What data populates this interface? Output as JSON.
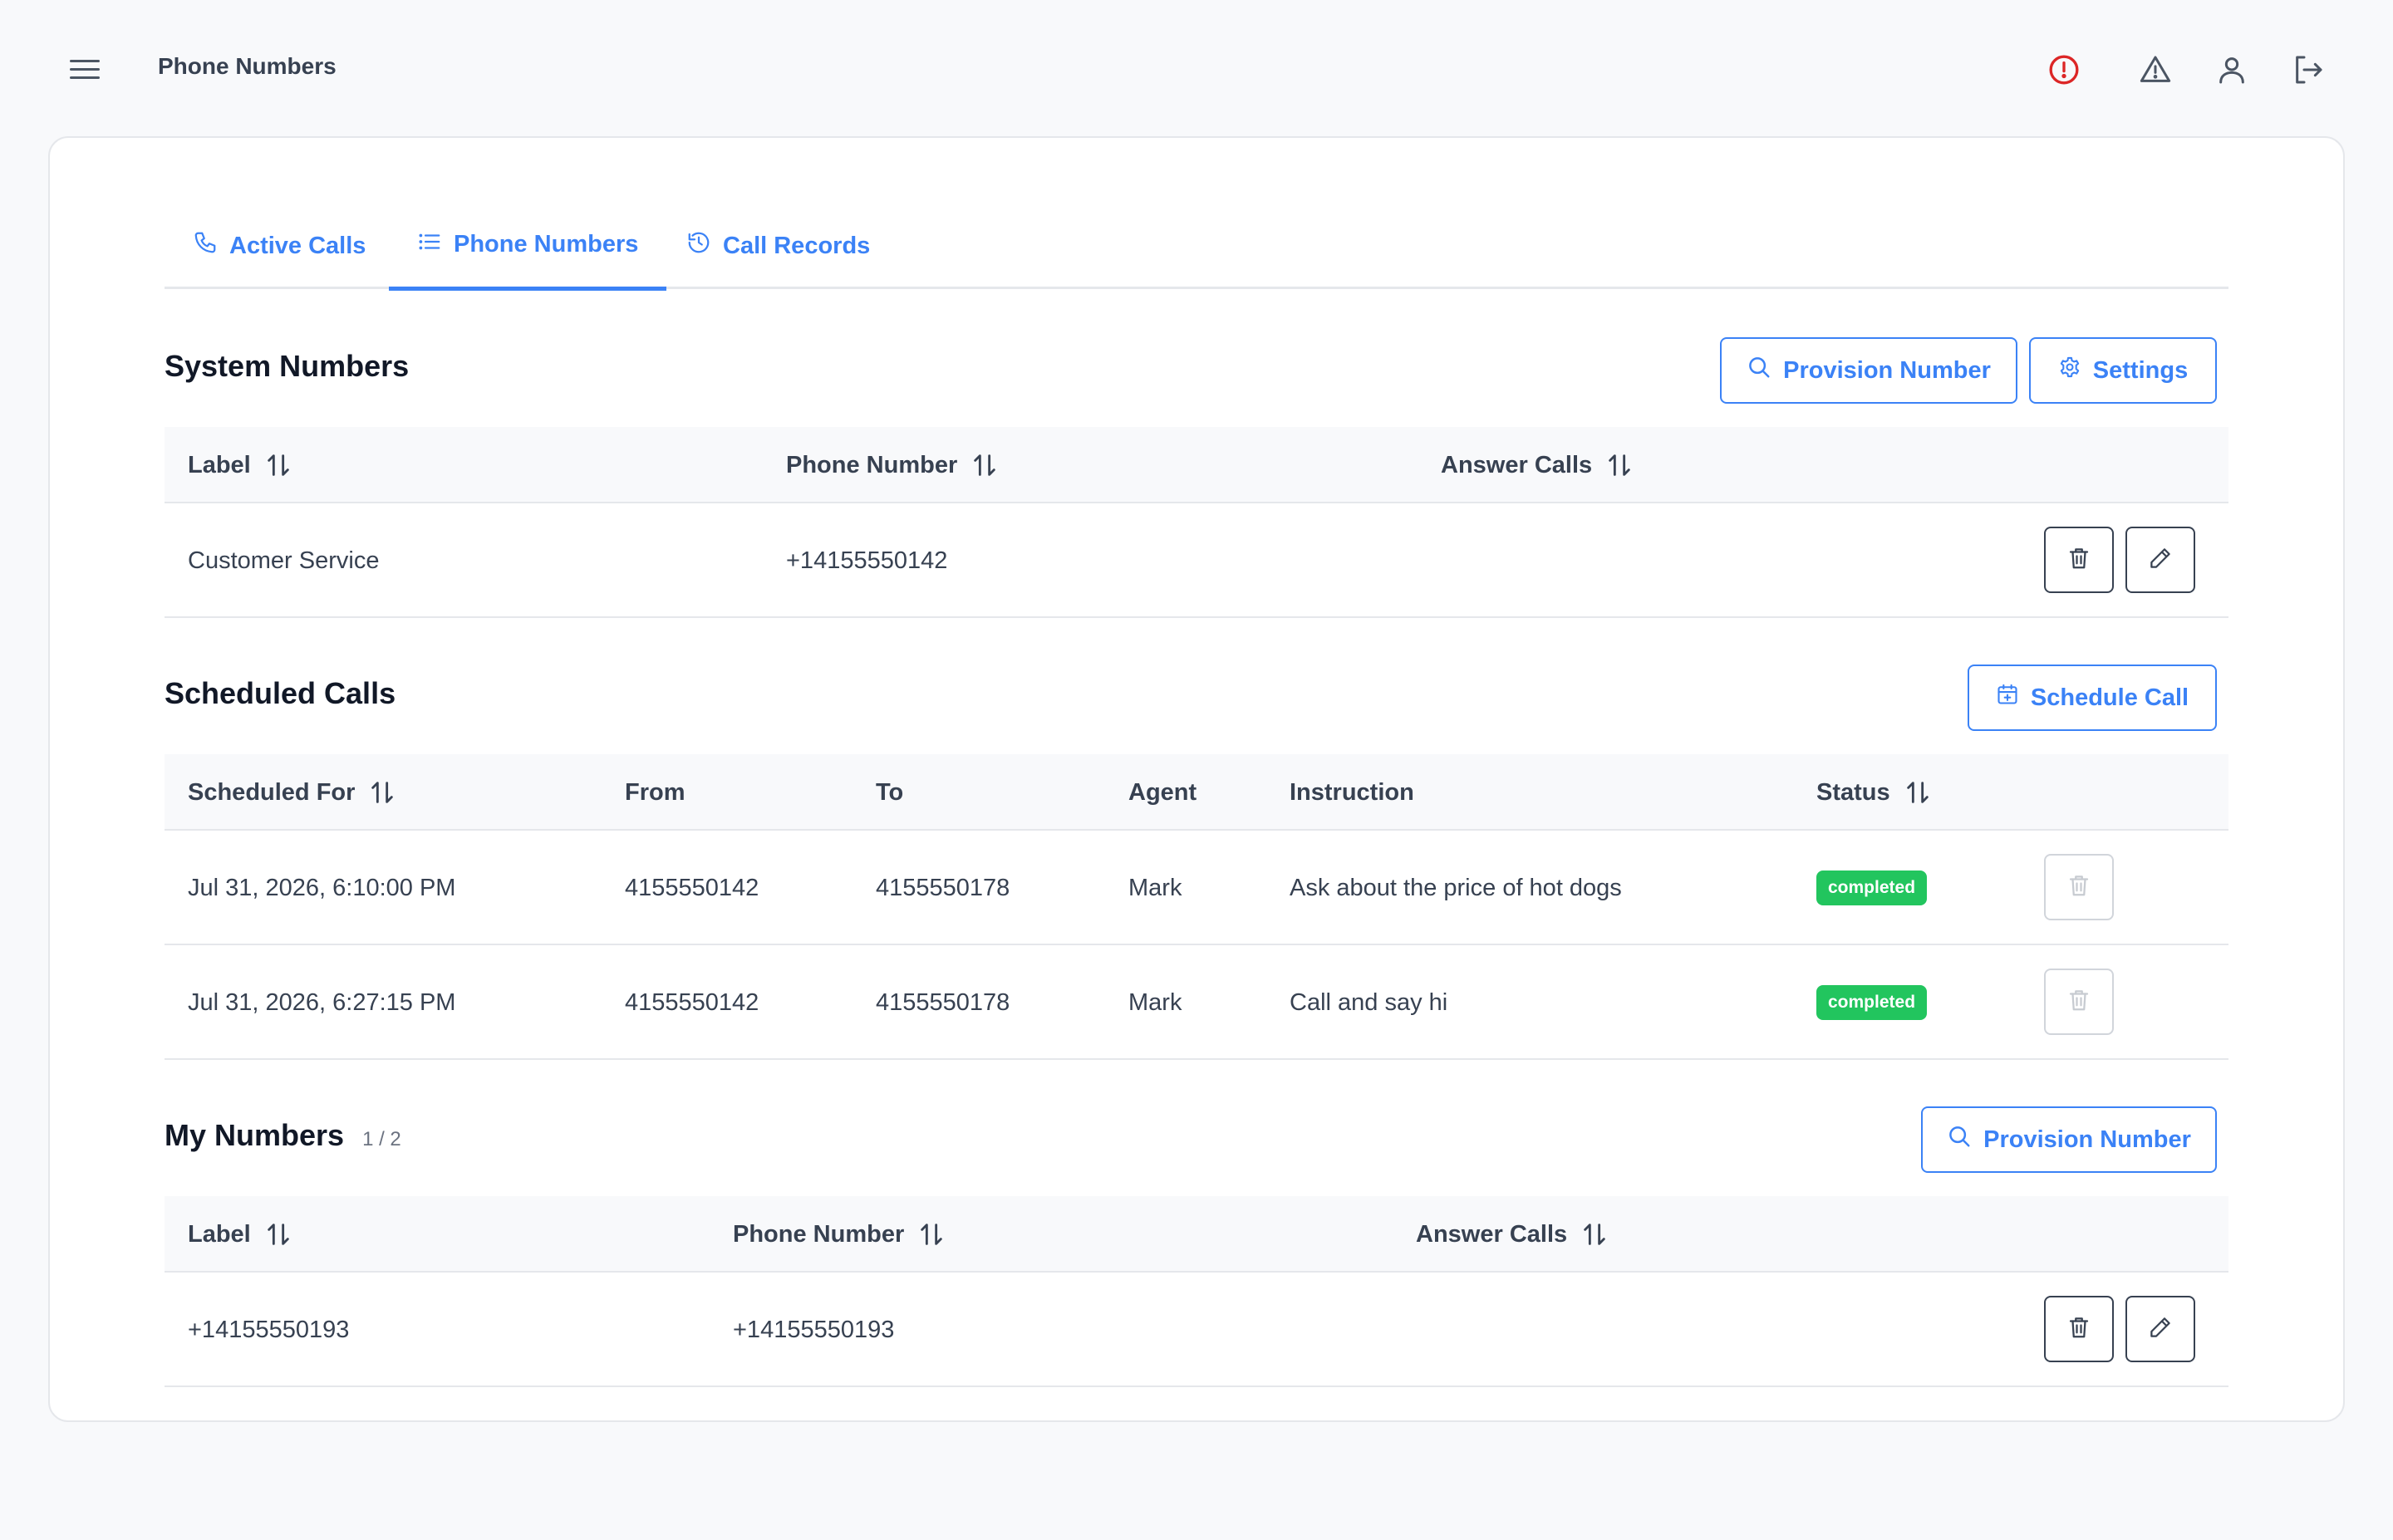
{
  "header": {
    "title": "Phone Numbers",
    "menu_icon": "hamburger-menu-icon",
    "icons": [
      "alert-circle-icon",
      "warning-triangle-icon",
      "user-icon",
      "logout-icon"
    ],
    "alert_color": "#dc2626"
  },
  "tabs": [
    {
      "label": "Active Calls",
      "icon": "phone-icon"
    },
    {
      "label": "Phone Numbers",
      "icon": "list-icon",
      "active": true
    },
    {
      "label": "Call Records",
      "icon": "history-icon"
    }
  ],
  "system_numbers": {
    "title": "System Numbers",
    "provision_label": "Provision Number",
    "settings_label": "Settings",
    "columns": [
      "Label",
      "Phone Number",
      "Answer Calls"
    ],
    "rows": [
      {
        "label": "Customer Service",
        "phone": "+14155550142",
        "answer_calls": ""
      }
    ]
  },
  "scheduled_calls": {
    "title": "Scheduled Calls",
    "schedule_label": "Schedule Call",
    "columns": [
      "Scheduled For",
      "From",
      "To",
      "Agent",
      "Instruction",
      "Status"
    ],
    "rows": [
      {
        "scheduled_for": "Jul 31, 2026, 6:10:00 PM",
        "from": "4155550142",
        "to": "4155550178",
        "agent": "Mark",
        "instruction": "Ask about the price of hot dogs",
        "status": "completed"
      },
      {
        "scheduled_for": "Jul 31, 2026, 6:27:15 PM",
        "from": "4155550142",
        "to": "4155550178",
        "agent": "Mark",
        "instruction": "Call and say hi",
        "status": "completed"
      }
    ]
  },
  "my_numbers": {
    "title": "My Numbers",
    "count": "1 / 2",
    "provision_label": "Provision Number",
    "columns": [
      "Label",
      "Phone Number",
      "Answer Calls"
    ],
    "rows": [
      {
        "label": "+14155550193",
        "phone": "+14155550193",
        "answer_calls": ""
      }
    ]
  },
  "colors": {
    "accent": "#3b82f6",
    "status_completed": "#22c55e",
    "background": "#f8f9fb"
  }
}
